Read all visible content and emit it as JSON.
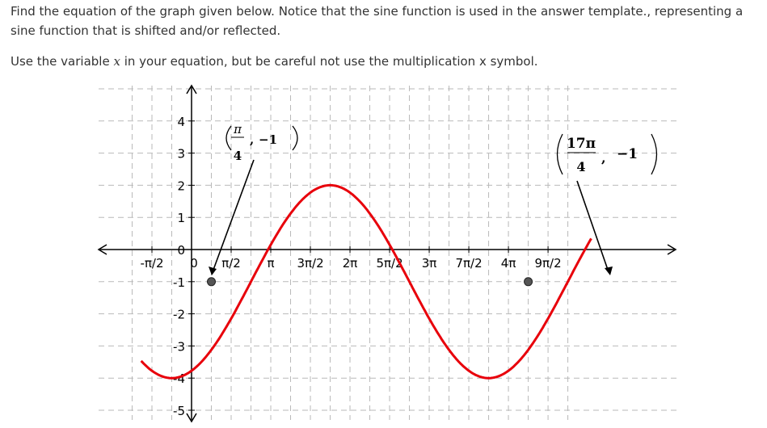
{
  "question": {
    "prompt": "Find the equation of the graph given below. Notice that the sine function is used in the answer template., representing a sine function that is shifted and/or reflected.",
    "note_before": "Use the variable ",
    "note_var": "x",
    "note_after": " in your equation, but be careful not use the multiplication x symbol."
  },
  "chart_data": {
    "type": "line",
    "title": "",
    "xlabel": "",
    "ylabel": "",
    "xlim": [
      -2.2,
      16.1
    ],
    "ylim": [
      -5.3,
      4.6
    ],
    "x_ticks": [
      {
        "value": -1.5708,
        "label": "-π/2"
      },
      {
        "value": 0,
        "label": "0"
      },
      {
        "value": 1.5708,
        "label": "π/2"
      },
      {
        "value": 3.1416,
        "label": "π"
      },
      {
        "value": 4.7124,
        "label": "3π/2"
      },
      {
        "value": 6.2832,
        "label": "2π"
      },
      {
        "value": 7.854,
        "label": "5π/2"
      },
      {
        "value": 9.4248,
        "label": "3π"
      },
      {
        "value": 10.9956,
        "label": "7π/2"
      },
      {
        "value": 12.5664,
        "label": "4π"
      },
      {
        "value": 14.1372,
        "label": "9π/2"
      }
    ],
    "y_ticks": [
      {
        "value": 4,
        "label": "4"
      },
      {
        "value": 3,
        "label": "3"
      },
      {
        "value": 2,
        "label": "2"
      },
      {
        "value": 1,
        "label": "1"
      },
      {
        "value": 0,
        "label": "0"
      },
      {
        "value": -1,
        "label": "-1"
      },
      {
        "value": -2,
        "label": "-2"
      },
      {
        "value": -3,
        "label": "-3"
      },
      {
        "value": -4,
        "label": "-4"
      },
      {
        "value": -5,
        "label": "-5"
      }
    ],
    "grid": true,
    "curve": {
      "amplitude": 3,
      "period": 12.5664,
      "phase_shift": 2.3562,
      "midline": -1,
      "color": "#e8000b"
    },
    "points": [
      {
        "x": 0.7854,
        "y": -1
      },
      {
        "x": 13.3518,
        "y": -1
      }
    ],
    "annotations": [
      {
        "text_num": "π",
        "text_den": "4",
        "text_y": "−1"
      },
      {
        "text_num": "17π",
        "text_den": "4",
        "text_y": "−1"
      }
    ]
  }
}
